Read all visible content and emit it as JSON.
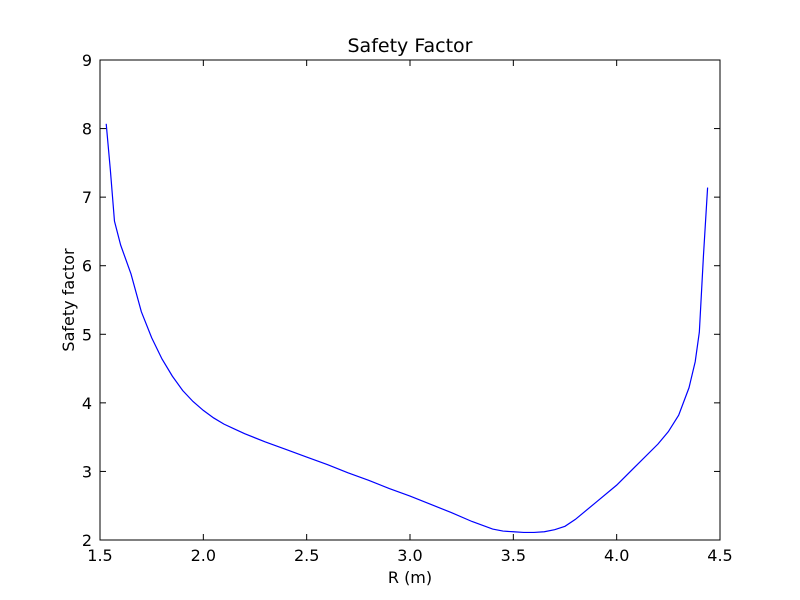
{
  "chart_data": {
    "type": "line",
    "title": "Safety Factor",
    "xlabel": "R (m)",
    "ylabel": "Safety factor",
    "xlim": [
      1.5,
      4.5
    ],
    "ylim": [
      2,
      9
    ],
    "xticks": [
      1.5,
      2.0,
      2.5,
      3.0,
      3.5,
      4.0,
      4.5
    ],
    "xtick_labels": [
      "1.5",
      "2.0",
      "2.5",
      "3.0",
      "3.5",
      "4.0",
      "4.5"
    ],
    "yticks": [
      2,
      3,
      4,
      5,
      6,
      7,
      8,
      9
    ],
    "ytick_labels": [
      "2",
      "3",
      "4",
      "5",
      "6",
      "7",
      "8",
      "9"
    ],
    "grid": false,
    "series": [
      {
        "color": "#0000ff",
        "x": [
          1.53,
          1.55,
          1.57,
          1.6,
          1.65,
          1.7,
          1.75,
          1.8,
          1.85,
          1.9,
          1.95,
          2.0,
          2.05,
          2.1,
          2.15,
          2.2,
          2.3,
          2.4,
          2.5,
          2.6,
          2.7,
          2.8,
          2.9,
          3.0,
          3.1,
          3.2,
          3.3,
          3.4,
          3.45,
          3.5,
          3.55,
          3.6,
          3.65,
          3.7,
          3.75,
          3.8,
          3.9,
          4.0,
          4.1,
          4.2,
          4.25,
          4.3,
          4.35,
          4.38,
          4.4,
          4.42,
          4.44
        ],
        "y": [
          8.07,
          7.4,
          6.65,
          6.3,
          5.88,
          5.33,
          4.95,
          4.64,
          4.39,
          4.18,
          4.02,
          3.89,
          3.78,
          3.69,
          3.62,
          3.55,
          3.43,
          3.32,
          3.21,
          3.1,
          2.98,
          2.87,
          2.75,
          2.64,
          2.52,
          2.4,
          2.27,
          2.16,
          2.13,
          2.12,
          2.11,
          2.11,
          2.12,
          2.15,
          2.2,
          2.3,
          2.55,
          2.8,
          3.1,
          3.4,
          3.58,
          3.82,
          4.22,
          4.6,
          5.03,
          6.15,
          7.14
        ]
      }
    ]
  }
}
